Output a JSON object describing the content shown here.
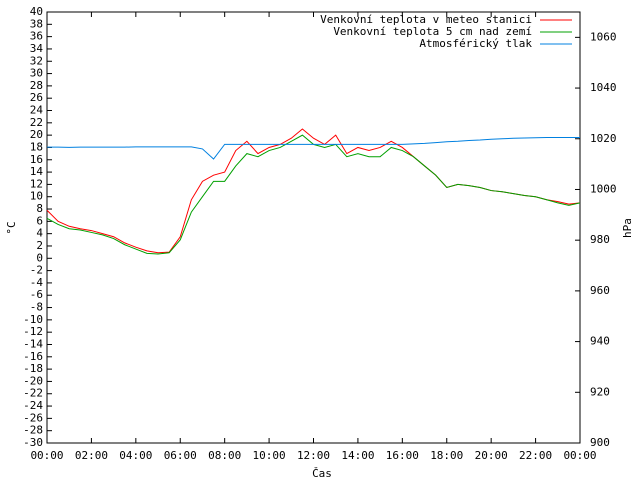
{
  "chart_data": {
    "type": "line",
    "xlabel": "Čas",
    "ylabel": "°C",
    "y2label": "hPa",
    "x": [
      0,
      0.5,
      1,
      1.5,
      2,
      2.5,
      3,
      3.5,
      4,
      4.5,
      5,
      5.5,
      6,
      6.5,
      7,
      7.5,
      8,
      8.5,
      9,
      9.5,
      10,
      10.5,
      11,
      11.5,
      12,
      12.5,
      13,
      13.5,
      14,
      14.5,
      15,
      15.5,
      16,
      16.5,
      17,
      17.5,
      18,
      18.5,
      19,
      19.5,
      20,
      20.5,
      21,
      21.5,
      22,
      22.5,
      23,
      23.5,
      24
    ],
    "series": [
      {
        "name": "Venkovní teplota v meteo stanici",
        "color": "#ff0000",
        "values": [
          7.8,
          6,
          5.2,
          4.8,
          4.5,
          4,
          3.5,
          2.5,
          1.8,
          1.2,
          0.9,
          1,
          3.5,
          9.5,
          12.5,
          13.5,
          14,
          17.5,
          19,
          17,
          18,
          18.5,
          19.5,
          21,
          19.5,
          18.5,
          20,
          17,
          18,
          17.5,
          18,
          19,
          18,
          16.5,
          15,
          13.5,
          11.5,
          12,
          11.8,
          11.5,
          11,
          10.8,
          10.5,
          10.2,
          10,
          9.5,
          9.2,
          8.8,
          9
        ]
      },
      {
        "name": "Venkovní teplota 5 cm nad zemí",
        "color": "#00a000",
        "values": [
          6.5,
          5.5,
          4.8,
          4.6,
          4.2,
          3.8,
          3.2,
          2.2,
          1.5,
          0.8,
          0.7,
          0.9,
          3,
          7.5,
          10,
          12.5,
          12.5,
          15,
          17,
          16.5,
          17.5,
          18,
          19,
          20,
          18.5,
          18,
          18.5,
          16.5,
          17,
          16.5,
          16.5,
          18,
          17.5,
          16.5,
          15,
          13.5,
          11.5,
          12,
          11.8,
          11.5,
          11,
          10.8,
          10.5,
          10.2,
          10,
          9.5,
          9,
          8.6,
          9
        ]
      },
      {
        "name": "Atmosférický tlak",
        "color": "#0080e0",
        "axis": "y2",
        "values": [
          1016.7,
          1016.7,
          1016.6,
          1016.7,
          1016.7,
          1016.7,
          1016.7,
          1016.7,
          1016.8,
          1016.8,
          1016.8,
          1016.8,
          1016.8,
          1016.8,
          1016,
          1012,
          1017.8,
          1017.8,
          1017.8,
          1017.8,
          1017.8,
          1017.8,
          1017.8,
          1017.8,
          1017.8,
          1017.8,
          1017.8,
          1017.8,
          1017.8,
          1017.8,
          1017.8,
          1017.8,
          1017.8,
          1018,
          1018.2,
          1018.5,
          1018.8,
          1019,
          1019.3,
          1019.5,
          1019.8,
          1020,
          1020.2,
          1020.3,
          1020.4,
          1020.5,
          1020.5,
          1020.5,
          1020.5
        ]
      }
    ],
    "xlim": [
      0,
      24
    ],
    "xticks": [
      {
        "value": 0,
        "label": "00:00"
      },
      {
        "value": 2,
        "label": "02:00"
      },
      {
        "value": 4,
        "label": "04:00"
      },
      {
        "value": 6,
        "label": "06:00"
      },
      {
        "value": 8,
        "label": "08:00"
      },
      {
        "value": 10,
        "label": "10:00"
      },
      {
        "value": 12,
        "label": "12:00"
      },
      {
        "value": 14,
        "label": "14:00"
      },
      {
        "value": 16,
        "label": "16:00"
      },
      {
        "value": 18,
        "label": "18:00"
      },
      {
        "value": 20,
        "label": "20:00"
      },
      {
        "value": 22,
        "label": "22:00"
      },
      {
        "value": 24,
        "label": "00:00"
      }
    ],
    "ylim": [
      -30,
      40
    ],
    "yticks": [
      -30,
      -28,
      -26,
      -24,
      -22,
      -20,
      -18,
      -16,
      -14,
      -12,
      -10,
      -8,
      -6,
      -4,
      -2,
      0,
      2,
      4,
      6,
      8,
      10,
      12,
      14,
      16,
      18,
      20,
      22,
      24,
      26,
      28,
      30,
      32,
      34,
      36,
      38,
      40
    ],
    "y2lim": [
      900,
      1070
    ],
    "y2ticks": [
      900,
      920,
      940,
      960,
      980,
      1000,
      1020,
      1040,
      1060
    ],
    "legend": "top-right"
  }
}
